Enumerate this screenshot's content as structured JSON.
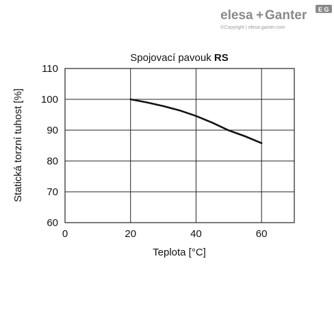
{
  "logo": {
    "brand_left": "elesa",
    "brand_plus": "+",
    "brand_right": "Ganter",
    "badge": "E G",
    "copyright": "©Copyright | elesa-ganter.com"
  },
  "chart_data": {
    "type": "line",
    "title_regular": "Spojovací pavouk ",
    "title_bold": "RS",
    "xlabel": "Teplota [°C]",
    "ylabel": "Statická torzní tuhost [%]",
    "xlim": [
      0,
      70
    ],
    "ylim": [
      60,
      110
    ],
    "xticks": [
      0,
      20,
      40,
      60
    ],
    "yticks": [
      60,
      70,
      80,
      90,
      100,
      110
    ],
    "grid": true,
    "series": [
      {
        "x": [
          20,
          25,
          30,
          35,
          40,
          45,
          50,
          55,
          60
        ],
        "values": [
          100,
          99,
          97.8,
          96.4,
          94.6,
          92.4,
          89.9,
          88.0,
          85.8
        ]
      }
    ]
  },
  "colors": {
    "line": "#111111",
    "grid": "#222222",
    "logo_text": "#8a8a8a"
  }
}
